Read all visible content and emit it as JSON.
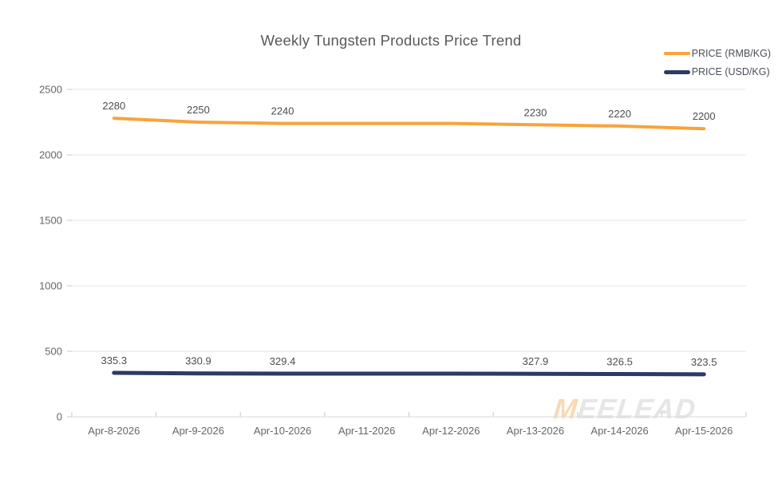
{
  "title": "Weekly Tungsten Products Price Trend",
  "watermark": {
    "prefix": "M",
    "rest": "EELEAD"
  },
  "colors": {
    "rmb_line": "#F8A33B",
    "usd_line": "#2B3A67",
    "grid": "#E4E4E4",
    "axis": "#DADADA",
    "tick": "#C9C9C9",
    "title_text": "#595959",
    "axis_text": "#666666",
    "data_label_text": "#4D4D4D",
    "legend_text": "#4A4E57",
    "background": "#FFFFFF"
  },
  "chart_data": {
    "type": "line",
    "title": "Weekly Tungsten Products Price Trend",
    "categories": [
      "Apr-8-2026",
      "Apr-9-2026",
      "Apr-10-2026",
      "Apr-11-2026",
      "Apr-12-2026",
      "Apr-13-2026",
      "Apr-14-2026",
      "Apr-15-2026"
    ],
    "series": [
      {
        "name": "PRICE (RMB/KG)",
        "color": "#F8A33B",
        "stroke_width": 4,
        "values": [
          2280,
          2250,
          2240,
          2240,
          2240,
          2230,
          2220,
          2200
        ],
        "point_labels": [
          "2280",
          "2250",
          "2240",
          "",
          "",
          "2230",
          "2220",
          "2200"
        ]
      },
      {
        "name": "PRICE (USD/KG)",
        "color": "#2B3A67",
        "stroke_width": 5,
        "values": [
          335.3,
          330.9,
          329.4,
          329.4,
          329.4,
          327.9,
          326.5,
          323.5
        ],
        "point_labels": [
          "335.3",
          "330.9",
          "329.4",
          "",
          "",
          "327.9",
          "326.5",
          "323.5"
        ]
      }
    ],
    "y_ticks": [
      0,
      500,
      1000,
      1500,
      2000,
      2500
    ],
    "ylim": [
      0,
      2500
    ],
    "xlabel": "",
    "ylabel": "",
    "grid": true,
    "legend_position": "top-right"
  }
}
